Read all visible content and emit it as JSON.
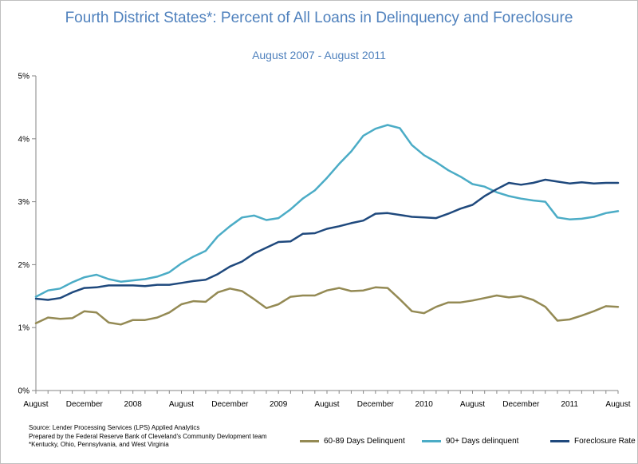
{
  "chart_data": {
    "type": "line",
    "title": "Fourth District States*: Percent of All Loans in Delinquency and Foreclosure",
    "subtitle": "August 2007 - August 2011",
    "ylim": [
      0,
      5
    ],
    "yticks": [
      "0%",
      "1%",
      "2%",
      "3%",
      "4%",
      "5%"
    ],
    "xtick_labels": [
      {
        "index": 0,
        "label": "August"
      },
      {
        "index": 4,
        "label": "December"
      },
      {
        "index": 8,
        "label": "2008"
      },
      {
        "index": 12,
        "label": "August"
      },
      {
        "index": 16,
        "label": "December"
      },
      {
        "index": 20,
        "label": "2009"
      },
      {
        "index": 24,
        "label": "August"
      },
      {
        "index": 28,
        "label": "December"
      },
      {
        "index": 32,
        "label": "2010"
      },
      {
        "index": 36,
        "label": "August"
      },
      {
        "index": 40,
        "label": "December"
      },
      {
        "index": 44,
        "label": "2011"
      },
      {
        "index": 48,
        "label": "August"
      }
    ],
    "series": [
      {
        "name": "60-89 Days Delinquent",
        "color": "#948a54",
        "values": [
          1.07,
          1.16,
          1.14,
          1.15,
          1.26,
          1.24,
          1.08,
          1.05,
          1.12,
          1.12,
          1.16,
          1.24,
          1.37,
          1.42,
          1.41,
          1.56,
          1.62,
          1.58,
          1.45,
          1.31,
          1.37,
          1.49,
          1.51,
          1.51,
          1.59,
          1.63,
          1.58,
          1.59,
          1.64,
          1.63,
          1.45,
          1.26,
          1.23,
          1.33,
          1.4,
          1.4,
          1.43,
          1.47,
          1.51,
          1.48,
          1.5,
          1.44,
          1.33,
          1.11,
          1.13,
          1.19,
          1.26,
          1.34,
          1.33
        ]
      },
      {
        "name": "90+ Days delinquent",
        "color": "#4bacc6",
        "values": [
          1.49,
          1.59,
          1.62,
          1.72,
          1.8,
          1.84,
          1.77,
          1.73,
          1.75,
          1.77,
          1.81,
          1.88,
          2.02,
          2.13,
          2.22,
          2.45,
          2.61,
          2.75,
          2.78,
          2.71,
          2.74,
          2.88,
          3.05,
          3.18,
          3.38,
          3.6,
          3.8,
          4.05,
          4.16,
          4.22,
          4.17,
          3.9,
          3.74,
          3.63,
          3.5,
          3.4,
          3.28,
          3.24,
          3.15,
          3.09,
          3.05,
          3.02,
          3.0,
          2.75,
          2.72,
          2.73,
          2.76,
          2.82,
          2.85
        ]
      },
      {
        "name": "Foreclosure Rate",
        "color": "#1f497d",
        "values": [
          1.46,
          1.44,
          1.47,
          1.56,
          1.63,
          1.64,
          1.67,
          1.67,
          1.67,
          1.66,
          1.68,
          1.68,
          1.71,
          1.74,
          1.76,
          1.85,
          1.97,
          2.05,
          2.18,
          2.27,
          2.36,
          2.37,
          2.49,
          2.5,
          2.57,
          2.61,
          2.66,
          2.7,
          2.81,
          2.82,
          2.79,
          2.76,
          2.75,
          2.74,
          2.81,
          2.89,
          2.95,
          3.09,
          3.2,
          3.3,
          3.27,
          3.3,
          3.35,
          3.32,
          3.29,
          3.31,
          3.29,
          3.3,
          3.3
        ]
      }
    ]
  },
  "footnotes": {
    "source": "Source: Lender Processing Services (LPS) Applied Analytics",
    "prepared": "Prepared by the Federal Reserve Bank of Cleveland's Community Devlopment team",
    "states": "*Kentucky, Ohio, Pennsylvania, and West Virginia"
  }
}
